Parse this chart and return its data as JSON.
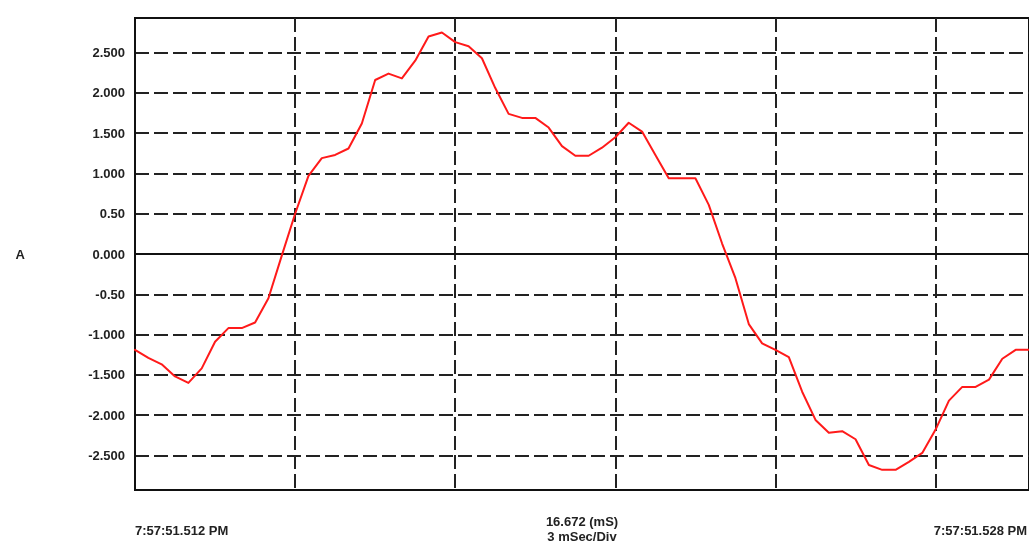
{
  "chart_data": {
    "type": "line",
    "xlabel": "16.672 (mS)\n3 mSec/Div",
    "ylabel": "A",
    "annotations": [
      "7:57:51.512 PM",
      "7:57:51.528 PM"
    ],
    "categories": [
      null,
      null,
      null,
      null,
      null,
      null,
      null,
      null,
      null,
      null,
      null,
      null,
      null,
      null,
      null,
      null,
      null,
      null,
      null,
      null,
      null,
      null,
      null,
      null,
      null,
      null,
      null,
      null,
      null,
      null,
      null,
      null,
      null,
      null,
      null,
      null,
      null,
      null,
      null,
      null,
      null,
      null,
      null,
      null,
      null,
      null,
      null,
      null,
      null,
      null,
      null,
      null,
      null,
      null,
      null,
      null,
      null,
      null,
      null,
      null,
      null,
      null,
      null,
      null,
      null,
      null,
      null,
      null
    ],
    "series": [
      {
        "color": "#ff1a1a",
        "values": [
          -1.19,
          -1.29,
          -1.37,
          -1.52,
          -1.6,
          -1.42,
          -1.09,
          -0.92,
          -0.92,
          -0.85,
          -0.55,
          -0.02,
          0.5,
          0.97,
          1.19,
          1.23,
          1.31,
          1.62,
          2.16,
          2.24,
          2.18,
          2.4,
          2.7,
          2.75,
          2.63,
          2.58,
          2.43,
          2.06,
          1.74,
          1.69,
          1.69,
          1.57,
          1.34,
          1.22,
          1.22,
          1.32,
          1.45,
          1.63,
          1.52,
          1.23,
          0.94,
          0.94,
          0.94,
          0.61,
          0.13,
          -0.3,
          -0.87,
          -1.11,
          -1.19,
          -1.28,
          -1.71,
          -2.06,
          -2.22,
          -2.2,
          -2.3,
          -2.62,
          -2.68,
          -2.68,
          -2.58,
          -2.47,
          -2.18,
          -1.82,
          -1.65,
          -1.65,
          -1.56,
          -1.3,
          -1.19,
          -1.19
        ]
      }
    ],
    "ylim": [
      -2.93,
      2.93
    ],
    "yticks": [
      {
        "value": -2.5,
        "label": "-2.500"
      },
      {
        "value": -2,
        "label": "-2.000"
      },
      {
        "value": -1.5,
        "label": "-1.500"
      },
      {
        "value": -1,
        "label": "-1.000"
      },
      {
        "value": -0.5,
        "label": "-0.50"
      },
      {
        "value": 0,
        "label": "0.000"
      },
      {
        "value": 0.5,
        "label": "0.50"
      },
      {
        "value": 1,
        "label": "1.000"
      },
      {
        "value": 1.5,
        "label": "1.500"
      },
      {
        "value": 2,
        "label": "2.000"
      },
      {
        "value": 2.5,
        "label": "2.500"
      }
    ],
    "tick_labels": "y",
    "grid": true,
    "marker": "none",
    "line_style": "solid"
  }
}
